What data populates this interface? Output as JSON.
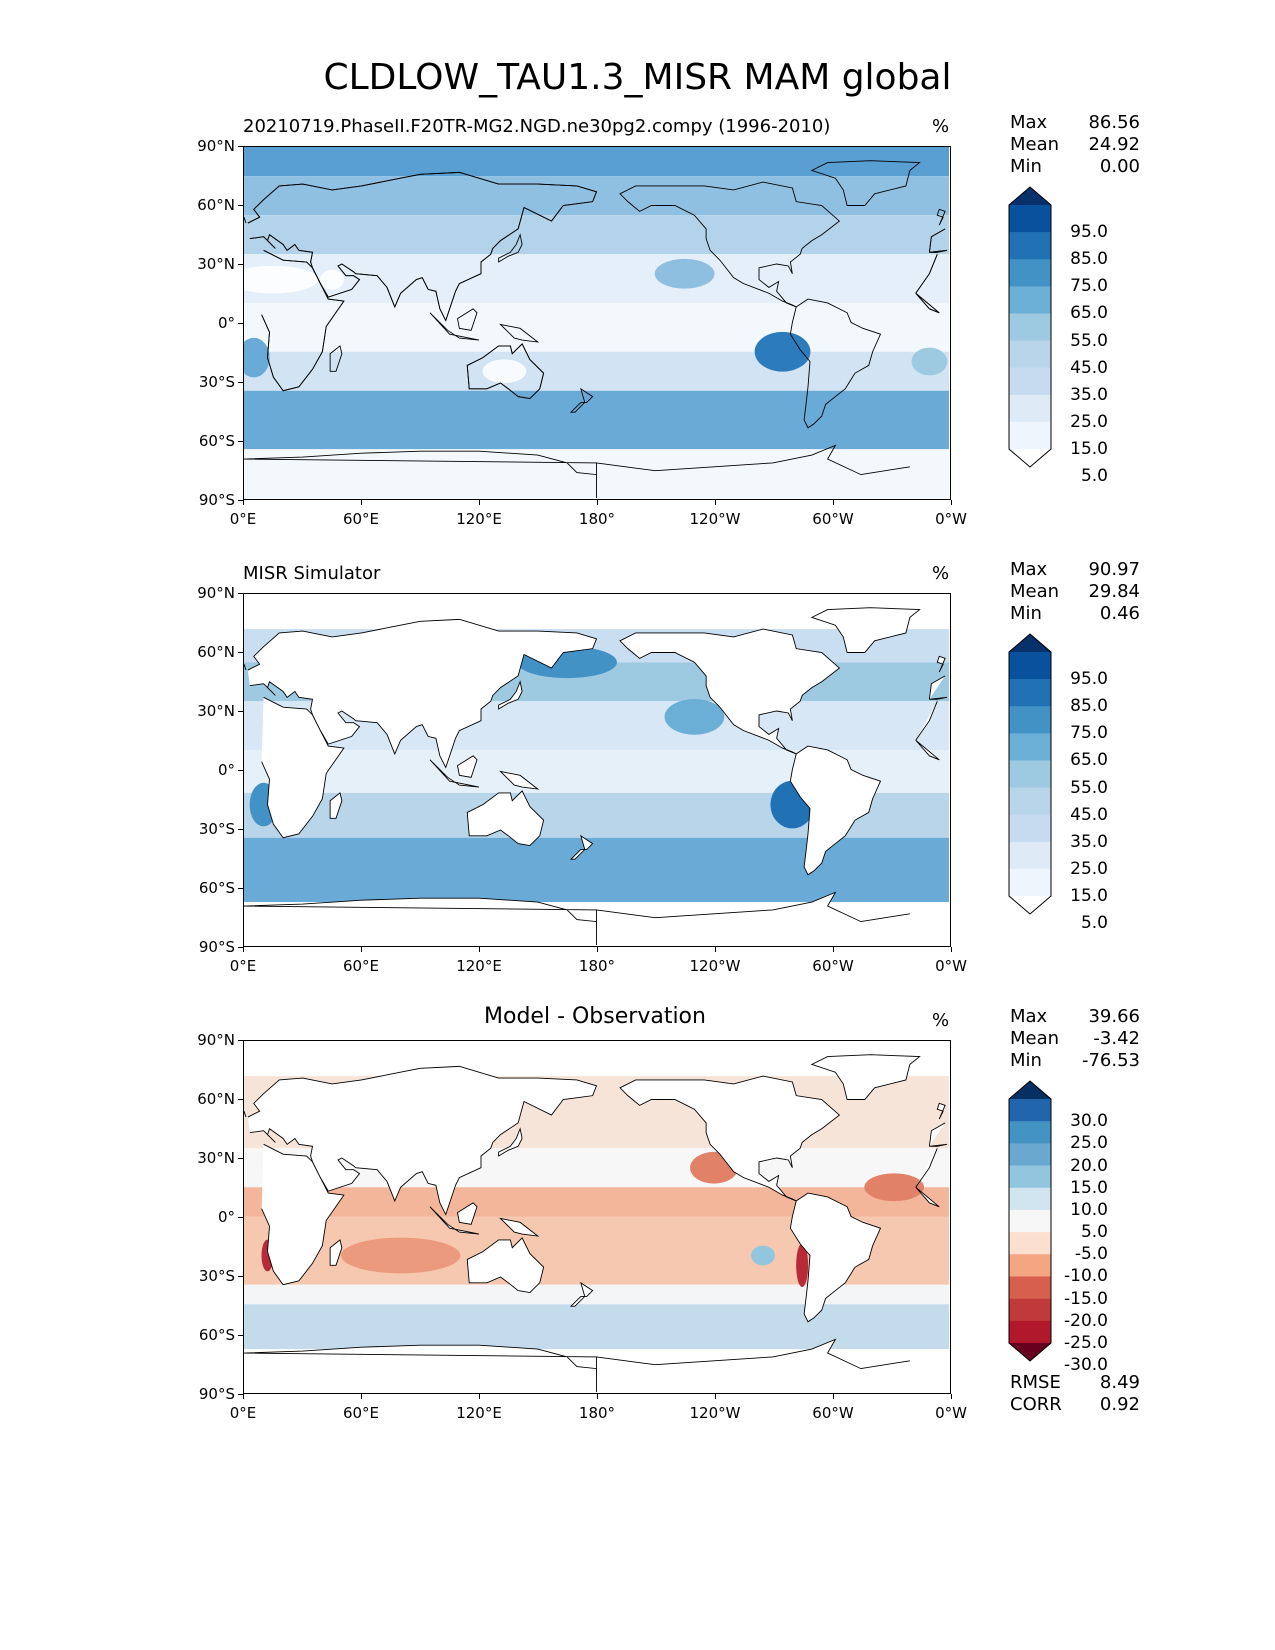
{
  "figure": {
    "title": "CLDLOW_TAU1.3_MISR MAM global"
  },
  "axes": {
    "lat_ticks": [
      "90°N",
      "60°N",
      "30°N",
      "0°",
      "30°S",
      "60°S",
      "90°S"
    ],
    "lon_ticks": [
      "0°E",
      "60°E",
      "120°E",
      "180°",
      "120°W",
      "60°W",
      "0°W"
    ]
  },
  "panels": [
    {
      "title": "20210719.PhaseII.F20TR-MG2.NGD.ne30pg2.compy (1996-2010)",
      "title_align": "left",
      "units": "%",
      "colormap": "blues",
      "stats": [
        {
          "label": "Max",
          "value": "86.56"
        },
        {
          "label": "Mean",
          "value": "24.92"
        },
        {
          "label": "Min",
          "value": "0.00"
        }
      ],
      "colorbar": {
        "labels": [
          "95.0",
          "85.0",
          "75.0",
          "65.0",
          "55.0",
          "45.0",
          "35.0",
          "25.0",
          "15.0",
          "5.0"
        ],
        "colors": [
          "#08306b",
          "#08519c",
          "#2171b5",
          "#4292c6",
          "#6baed6",
          "#9ecae1",
          "#b8d5ea",
          "#c6dbef",
          "#deebf7",
          "#eef5fc",
          "#ffffff"
        ]
      },
      "extra_stats": []
    },
    {
      "title": "MISR Simulator",
      "title_align": "left",
      "units": "%",
      "colormap": "blues",
      "stats": [
        {
          "label": "Max",
          "value": "90.97"
        },
        {
          "label": "Mean",
          "value": "29.84"
        },
        {
          "label": "Min",
          "value": "0.46"
        }
      ],
      "colorbar": {
        "labels": [
          "95.0",
          "85.0",
          "75.0",
          "65.0",
          "55.0",
          "45.0",
          "35.0",
          "25.0",
          "15.0",
          "5.0"
        ],
        "colors": [
          "#08306b",
          "#08519c",
          "#2171b5",
          "#4292c6",
          "#6baed6",
          "#9ecae1",
          "#b8d5ea",
          "#c6dbef",
          "#deebf7",
          "#eef5fc",
          "#ffffff"
        ]
      },
      "extra_stats": []
    },
    {
      "title": "Model - Observation",
      "title_align": "center",
      "units": "%",
      "colormap": "rdbu",
      "stats": [
        {
          "label": "Max",
          "value": "39.66"
        },
        {
          "label": "Mean",
          "value": "-3.42"
        },
        {
          "label": "Min",
          "value": "-76.53"
        }
      ],
      "colorbar": {
        "labels": [
          "30.0",
          "25.0",
          "20.0",
          "15.0",
          "10.0",
          "5.0",
          "-5.0",
          "-10.0",
          "-15.0",
          "-20.0",
          "-25.0",
          "-30.0"
        ],
        "colors": [
          "#053061",
          "#2166ac",
          "#4393c3",
          "#6ba8d0",
          "#92c5de",
          "#d1e5f0",
          "#f7f7f7",
          "#fbe0d0",
          "#f4a582",
          "#d6604d",
          "#c03a3a",
          "#b2182b",
          "#67001f"
        ]
      },
      "extra_stats": [
        {
          "label": "RMSE",
          "value": "8.49"
        },
        {
          "label": "CORR",
          "value": "0.92"
        }
      ]
    }
  ]
}
